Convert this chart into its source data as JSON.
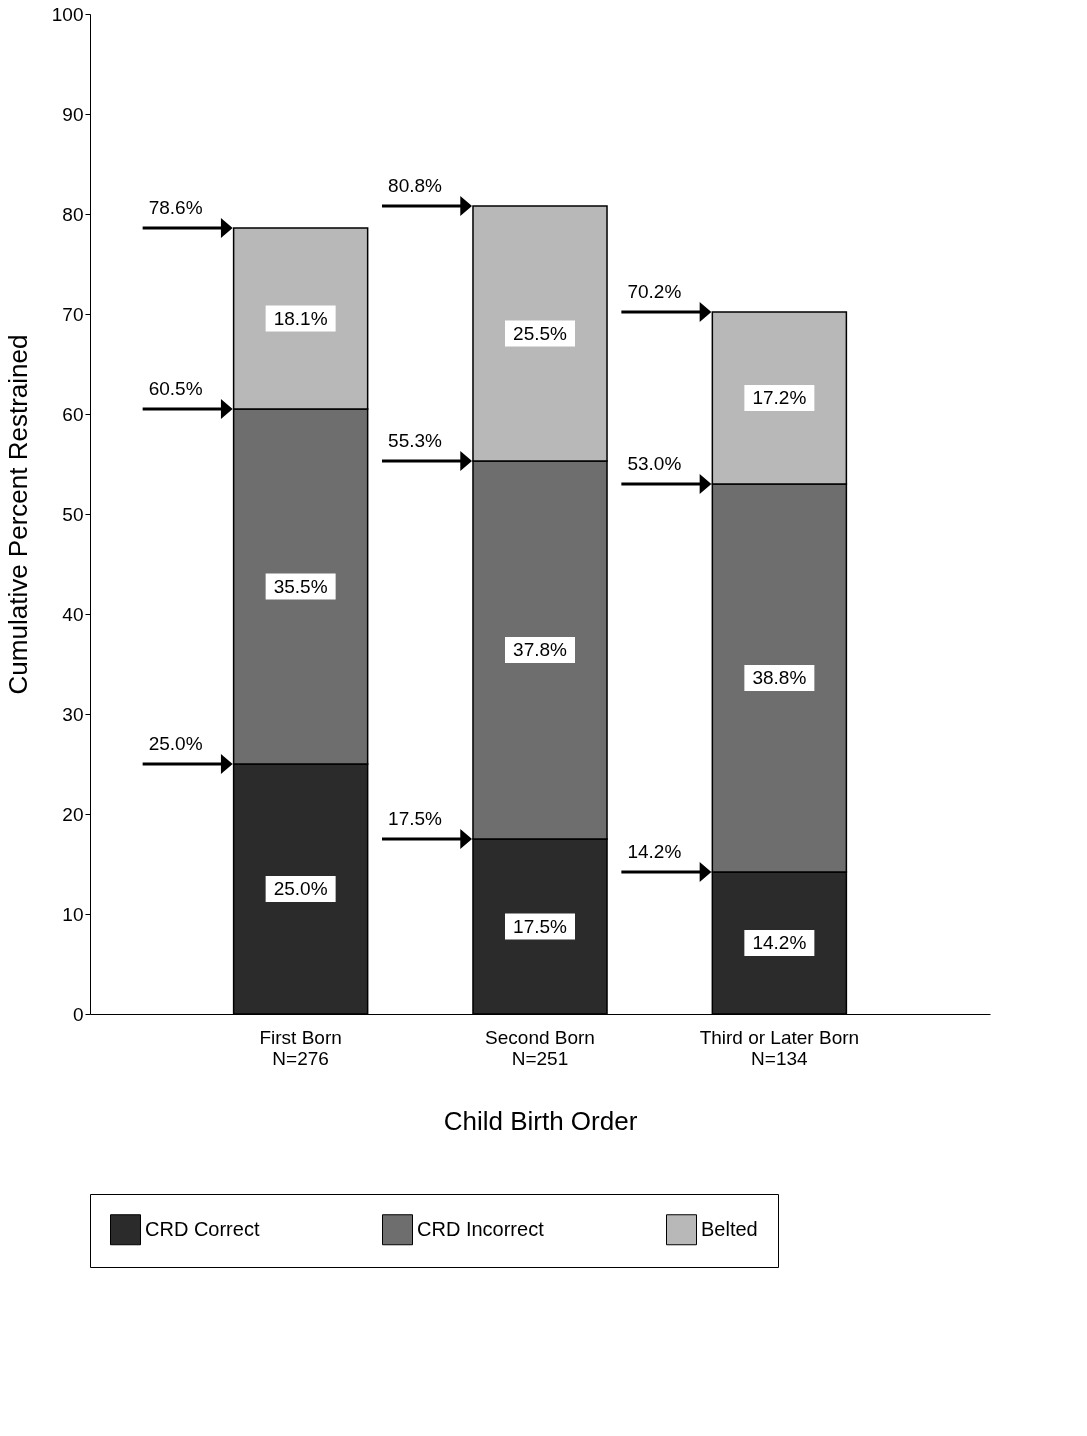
{
  "chart_data": {
    "type": "bar",
    "stacked": true,
    "xlabel": "Child Birth Order",
    "ylabel": "Cumulative Percent Restrained",
    "categories": [
      "First Born\nN=276",
      "Second Born\nN=251",
      "Third or Later Born\nN=134"
    ],
    "series": [
      {
        "name": "CRD Correct",
        "color": "#2b2b2b",
        "values": [
          25.0,
          17.5,
          14.2
        ],
        "value_labels": [
          "25.0%",
          "17.5%",
          "14.2%"
        ]
      },
      {
        "name": "CRD Incorrect",
        "color": "#6e6e6e",
        "values": [
          35.5,
          37.8,
          38.8
        ],
        "value_labels": [
          "35.5%",
          "37.8%",
          "38.8%"
        ]
      },
      {
        "name": "Belted",
        "color": "#b8b8b8",
        "values": [
          18.1,
          25.5,
          17.2
        ],
        "value_labels": [
          "18.1%",
          "25.5%",
          "17.2%"
        ]
      }
    ],
    "ylim": [
      0,
      100
    ],
    "yticks": [
      0,
      10,
      20,
      30,
      40,
      50,
      60,
      70,
      80,
      90,
      100
    ],
    "grid": false,
    "legend": "bottom",
    "annotations": [
      "25.0%",
      "60.5%",
      "78.6%",
      "17.5%",
      "55.3%",
      "80.8%",
      "14.2%",
      "53.0%",
      "70.2%"
    ]
  }
}
